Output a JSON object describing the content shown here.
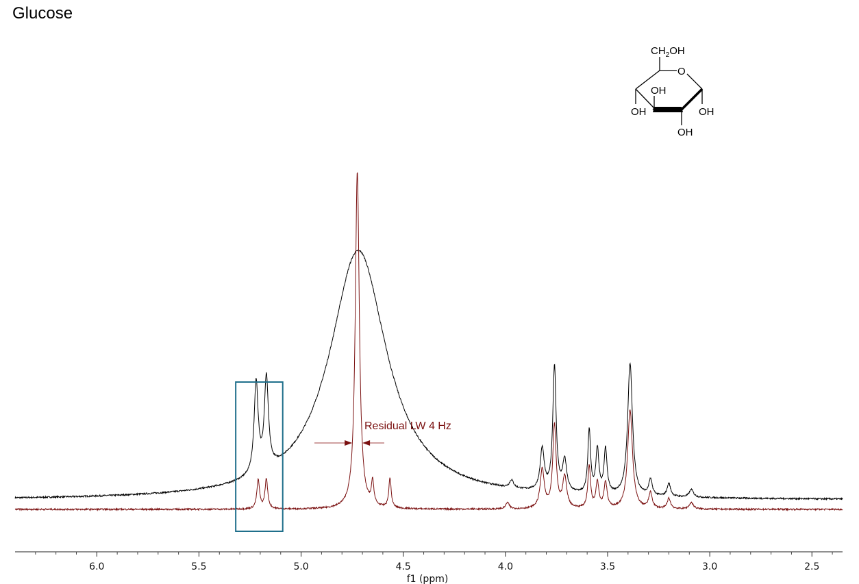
{
  "title": "Glucose",
  "structure_labels": {
    "ch2oh": "CH2OH",
    "ring_o": "O",
    "oh_top": "OH",
    "oh_left": "OH",
    "oh_right": "OH",
    "oh_bottom": "OH"
  },
  "chart_data": {
    "type": "line",
    "title": "Glucose",
    "xlabel": "f1 (ppm)",
    "ylabel": "",
    "xlim": [
      6.4,
      2.35
    ],
    "x_reversed": true,
    "ylim": [
      0,
      1
    ],
    "xticks": [
      6.0,
      5.5,
      5.0,
      4.5,
      4.0,
      3.5,
      3.0,
      2.5
    ],
    "xtick_labels": [
      "6.0",
      "5.5",
      "5.0",
      "4.5",
      "4.0",
      "3.5",
      "3.0",
      "2.5"
    ],
    "grid": false,
    "legend": "none",
    "series": [
      {
        "color": "#000000",
        "baseline": 0.035,
        "broad_peak": {
          "center": 4.72,
          "width": 0.17,
          "height": 3.2
        },
        "peaks": [
          {
            "x": 5.22,
            "height": 0.35,
            "width": 0.012
          },
          {
            "x": 5.17,
            "height": 0.35,
            "width": 0.012
          },
          {
            "x": 3.97,
            "height": 0.03,
            "width": 0.012
          },
          {
            "x": 3.82,
            "height": 0.16,
            "width": 0.012
          },
          {
            "x": 3.76,
            "height": 0.48,
            "width": 0.01
          },
          {
            "x": 3.71,
            "height": 0.12,
            "width": 0.012
          },
          {
            "x": 3.59,
            "height": 0.24,
            "width": 0.008
          },
          {
            "x": 3.55,
            "height": 0.17,
            "width": 0.009
          },
          {
            "x": 3.51,
            "height": 0.17,
            "width": 0.009
          },
          {
            "x": 3.39,
            "height": 0.51,
            "width": 0.014
          },
          {
            "x": 3.29,
            "height": 0.06,
            "width": 0.01
          },
          {
            "x": 3.2,
            "height": 0.05,
            "width": 0.01
          },
          {
            "x": 3.09,
            "height": 0.03,
            "width": 0.012
          }
        ]
      },
      {
        "color": "#7a1010",
        "baseline": 0.0,
        "broad_peak": null,
        "peaks": [
          {
            "x": 5.21,
            "height": 0.11,
            "width": 0.008
          },
          {
            "x": 5.17,
            "height": 0.115,
            "width": 0.008
          },
          {
            "x": 4.725,
            "height": 1.3,
            "width": 0.012
          },
          {
            "x": 4.65,
            "height": 0.09,
            "width": 0.007
          },
          {
            "x": 4.565,
            "height": 0.115,
            "width": 0.007
          },
          {
            "x": 3.99,
            "height": 0.025,
            "width": 0.01
          },
          {
            "x": 3.82,
            "height": 0.15,
            "width": 0.012
          },
          {
            "x": 3.76,
            "height": 0.32,
            "width": 0.01
          },
          {
            "x": 3.71,
            "height": 0.12,
            "width": 0.012
          },
          {
            "x": 3.59,
            "height": 0.16,
            "width": 0.008
          },
          {
            "x": 3.55,
            "height": 0.1,
            "width": 0.009
          },
          {
            "x": 3.51,
            "height": 0.1,
            "width": 0.009
          },
          {
            "x": 3.39,
            "height": 0.38,
            "width": 0.014
          },
          {
            "x": 3.29,
            "height": 0.06,
            "width": 0.01
          },
          {
            "x": 3.2,
            "height": 0.04,
            "width": 0.01
          },
          {
            "x": 3.09,
            "height": 0.025,
            "width": 0.012
          }
        ]
      }
    ],
    "annotations": [
      {
        "text": "Residual LW 4 Hz",
        "color": "#7a1010",
        "arrows_at": [
          4.74,
          4.71
        ]
      },
      {
        "type": "box",
        "color": "#1f6f8b",
        "x_range": [
          5.32,
          5.09
        ]
      }
    ]
  }
}
